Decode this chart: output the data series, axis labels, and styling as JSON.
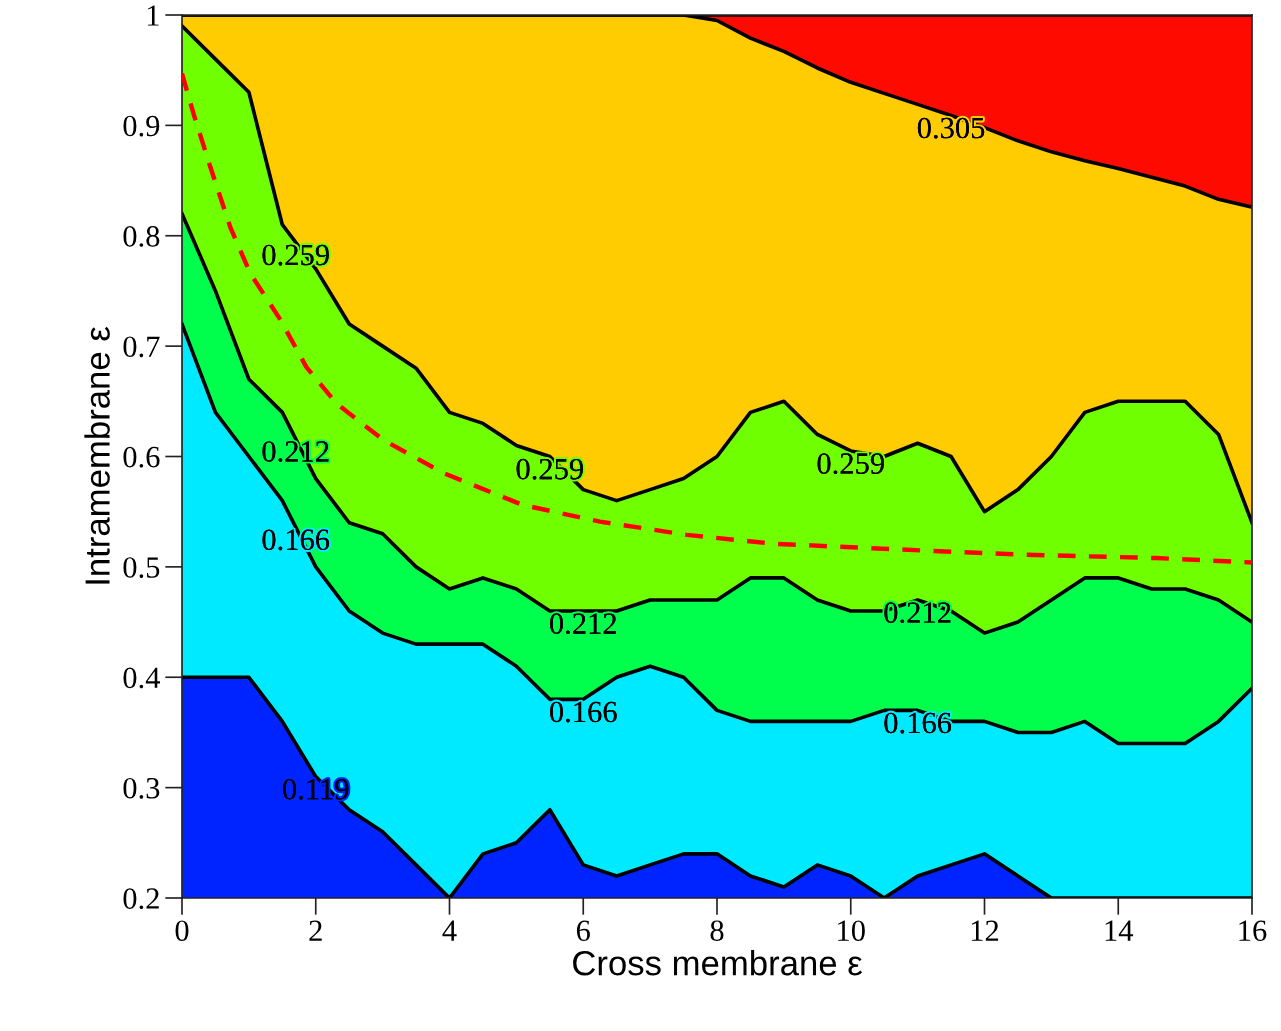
{
  "chart_data": {
    "type": "area",
    "xlabel": "Cross membrane ε",
    "ylabel": "Intramembrane ε",
    "x": [
      0,
      0.5,
      1,
      1.5,
      2,
      2.5,
      3,
      3.5,
      4,
      4.5,
      5,
      5.5,
      6,
      6.5,
      7,
      7.5,
      8,
      8.5,
      9,
      9.5,
      10,
      10.5,
      11,
      11.5,
      12,
      12.5,
      13,
      13.5,
      14,
      14.5,
      15,
      15.5,
      16
    ],
    "xlim": [
      0,
      16
    ],
    "ylim": [
      0.2,
      1
    ],
    "xticks": [
      0,
      2,
      4,
      6,
      8,
      10,
      12,
      14,
      16
    ],
    "yticks": [
      0.2,
      0.3,
      0.4,
      0.5,
      0.6,
      0.7,
      0.8,
      0.9,
      {
        "value": 1,
        "label": "1"
      }
    ],
    "series": [
      {
        "color": "#ff0a00",
        "values": [
          1,
          1,
          1,
          1,
          1,
          1,
          1,
          1,
          1,
          1,
          1,
          1,
          1,
          1,
          1,
          1,
          1,
          1,
          1,
          1,
          1,
          1,
          1,
          1,
          1,
          1,
          1,
          1,
          1,
          1,
          1,
          1,
          1
        ]
      },
      {
        "color": "#fecc00",
        "values": [
          1,
          1,
          1,
          1,
          1,
          1,
          1,
          1,
          1,
          1,
          1,
          1,
          1,
          1,
          1,
          1,
          0.995,
          0.979,
          0.967,
          0.952,
          0.939,
          0.929,
          0.919,
          0.909,
          0.898,
          0.886,
          0.876,
          0.868,
          0.861,
          0.853,
          0.845,
          0.833,
          0.826
        ]
      },
      {
        "color": "#70ff00",
        "values": [
          0.99,
          0.96,
          0.93,
          0.81,
          0.77,
          0.72,
          0.7,
          0.68,
          0.64,
          0.63,
          0.61,
          0.6,
          0.57,
          0.56,
          0.57,
          0.58,
          0.6,
          0.64,
          0.65,
          0.62,
          0.605,
          0.6,
          0.612,
          0.6,
          0.55,
          0.57,
          0.6,
          0.64,
          0.65,
          0.65,
          0.65,
          0.62,
          0.54
        ]
      },
      {
        "color": "#00ff4c",
        "values": [
          0.82,
          0.75,
          0.67,
          0.64,
          0.58,
          0.54,
          0.53,
          0.5,
          0.48,
          0.49,
          0.48,
          0.46,
          0.46,
          0.46,
          0.47,
          0.47,
          0.47,
          0.49,
          0.49,
          0.47,
          0.46,
          0.46,
          0.47,
          0.46,
          0.44,
          0.45,
          0.47,
          0.49,
          0.49,
          0.48,
          0.48,
          0.47,
          0.45
        ]
      },
      {
        "color": "#00eaff",
        "values": [
          0.72,
          0.64,
          0.6,
          0.56,
          0.5,
          0.46,
          0.44,
          0.43,
          0.43,
          0.43,
          0.41,
          0.38,
          0.38,
          0.4,
          0.41,
          0.4,
          0.37,
          0.36,
          0.36,
          0.36,
          0.36,
          0.37,
          0.37,
          0.36,
          0.36,
          0.35,
          0.35,
          0.36,
          0.34,
          0.34,
          0.34,
          0.36,
          0.39
        ]
      },
      {
        "color": "#0024ff",
        "values": [
          0.4,
          0.4,
          0.4,
          0.36,
          0.31,
          0.28,
          0.26,
          0.23,
          0.2,
          0.24,
          0.25,
          0.28,
          0.23,
          0.22,
          0.23,
          0.24,
          0.24,
          0.22,
          0.21,
          0.23,
          0.22,
          0.2,
          0.22,
          0.23,
          0.24,
          0.22,
          0.2,
          0.2,
          0.2,
          0.2,
          0.2,
          0.2,
          0.2
        ]
      },
      {
        "type": "line",
        "color": "#ff0000",
        "line_style": "dashed",
        "x": [
          0,
          0.17,
          0.42,
          0.72,
          1.02,
          1.47,
          1.86,
          2.31,
          3.01,
          3.91,
          5.1,
          6.25,
          7.55,
          8.84,
          10.64,
          12.58,
          14.57,
          16
        ],
        "values": [
          0.947,
          0.911,
          0.863,
          0.808,
          0.766,
          0.724,
          0.681,
          0.648,
          0.615,
          0.585,
          0.556,
          0.541,
          0.529,
          0.521,
          0.516,
          0.511,
          0.508,
          0.504
        ]
      }
    ],
    "annotations": [
      {
        "text": "0.305",
        "x": 11.5,
        "y": 0.909
      },
      {
        "text": "0.259",
        "x": 1.7,
        "y": 0.794
      },
      {
        "text": "0.259",
        "x": 5.5,
        "y": 0.6
      },
      {
        "text": "0.259",
        "x": 10,
        "y": 0.605
      },
      {
        "text": "0.212",
        "x": 1.7,
        "y": 0.616
      },
      {
        "text": "0.212",
        "x": 6,
        "y": 0.46
      },
      {
        "text": "0.212",
        "x": 11,
        "y": 0.47
      },
      {
        "text": "0.166",
        "x": 1.7,
        "y": 0.536
      },
      {
        "text": "0.166",
        "x": 6,
        "y": 0.38
      },
      {
        "text": "0.166",
        "x": 11,
        "y": 0.37
      },
      {
        "text": "0.119",
        "x": 2,
        "y": 0.31
      }
    ],
    "grid": false
  }
}
